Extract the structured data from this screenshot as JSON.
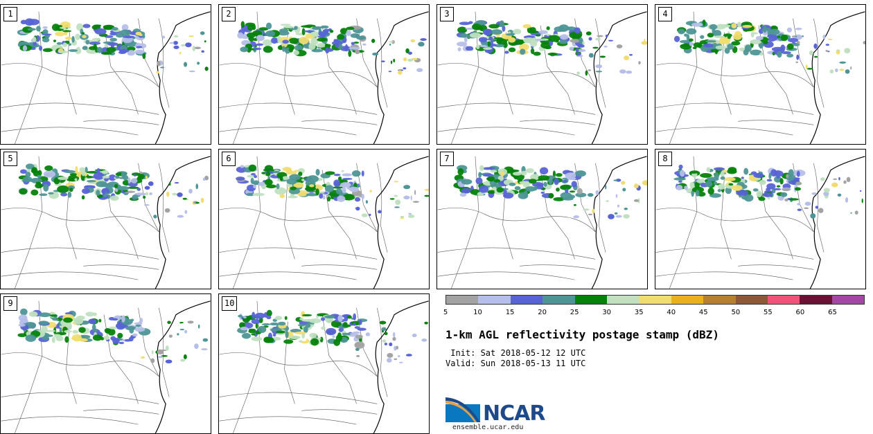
{
  "panels": [
    {
      "label": "1"
    },
    {
      "label": "2"
    },
    {
      "label": "3"
    },
    {
      "label": "4"
    },
    {
      "label": "5"
    },
    {
      "label": "6"
    },
    {
      "label": "7"
    },
    {
      "label": "8"
    },
    {
      "label": "9"
    },
    {
      "label": "10"
    }
  ],
  "colorbar": {
    "colors": [
      "#a3a3a3",
      "#b6bfe8",
      "#5763d6",
      "#4e9597",
      "#05820a",
      "#c0e0c0",
      "#f1dd6f",
      "#eab020",
      "#b77f30",
      "#8c573a",
      "#ee5579",
      "#6b1234",
      "#a548a5"
    ],
    "labels": [
      "5",
      "10",
      "15",
      "20",
      "25",
      "30",
      "35",
      "40",
      "45",
      "50",
      "55",
      "60",
      "65"
    ]
  },
  "title": "1-km AGL reflectivity postage stamp (dBZ)",
  "init_text": " Init: Sat 2018-05-12 12 UTC",
  "valid_text": "Valid: Sun 2018-05-13 11 UTC",
  "logo": {
    "name": "NCAR",
    "url": "ensemble.ucar.edu"
  }
}
